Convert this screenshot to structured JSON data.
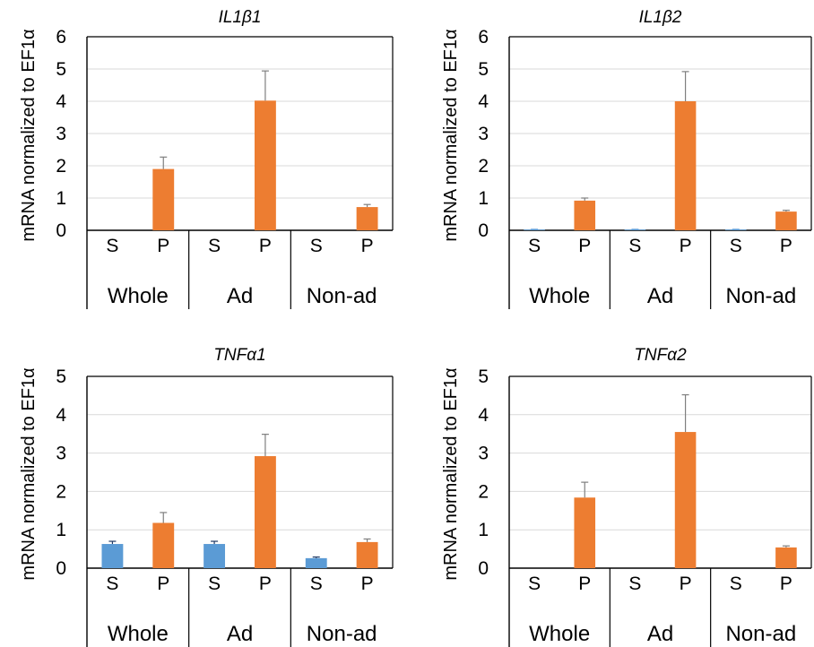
{
  "colors": {
    "S": "#5b9bd5",
    "P": "#ed7d31",
    "grid": "#d9d9d9",
    "axis": "#000000",
    "error": "#7f7f7f"
  },
  "chart_data": [
    {
      "type": "bar",
      "title": "IL1β1",
      "ylabel": "mRNA normalized to EF1α",
      "ylim": [
        0,
        6
      ],
      "yticks": [
        "0",
        "1",
        "2",
        "3",
        "4",
        "5",
        "6"
      ],
      "grid": true,
      "categories": [
        "S",
        "P",
        "S",
        "P",
        "S",
        "P"
      ],
      "groups": [
        "Whole",
        "Ad",
        "Non-ad"
      ],
      "values": [
        0,
        1.9,
        0,
        4.02,
        0,
        0.72
      ],
      "errors": [
        0,
        0.37,
        0,
        0.92,
        0,
        0.08
      ]
    },
    {
      "type": "bar",
      "title": "IL1β2",
      "ylabel": "mRNA normalized to EF1α",
      "ylim": [
        0,
        6
      ],
      "yticks": [
        "0",
        "1",
        "2",
        "3",
        "4",
        "5",
        "6"
      ],
      "grid": true,
      "categories": [
        "S",
        "P",
        "S",
        "P",
        "S",
        "P"
      ],
      "groups": [
        "Whole",
        "Ad",
        "Non-ad"
      ],
      "values": [
        0.01,
        0.92,
        0.01,
        4.0,
        0.01,
        0.58
      ],
      "errors": [
        0.02,
        0.08,
        0.02,
        0.92,
        0.02,
        0.04
      ]
    },
    {
      "type": "bar",
      "title": "TNFα1",
      "ylabel": "mRNA  normalized to EF1α",
      "ylim": [
        0,
        5
      ],
      "yticks": [
        "0",
        "1",
        "2",
        "3",
        "4",
        "5"
      ],
      "grid": true,
      "categories": [
        "S",
        "P",
        "S",
        "P",
        "S",
        "P"
      ],
      "groups": [
        "Whole",
        "Ad",
        "Non-ad"
      ],
      "values": [
        0.63,
        1.18,
        0.63,
        2.92,
        0.26,
        0.68
      ],
      "errors": [
        0.07,
        0.27,
        0.07,
        0.57,
        0.03,
        0.08
      ]
    },
    {
      "type": "bar",
      "title": "TNFα2",
      "ylabel": "mRNA normalized to EF1α",
      "ylim": [
        0,
        5
      ],
      "yticks": [
        "0",
        "1",
        "2",
        "3",
        "4",
        "5"
      ],
      "grid": true,
      "categories": [
        "S",
        "P",
        "S",
        "P",
        "S",
        "P"
      ],
      "groups": [
        "Whole",
        "Ad",
        "Non-ad"
      ],
      "values": [
        0,
        1.84,
        0,
        3.55,
        0,
        0.54
      ],
      "errors": [
        0,
        0.4,
        0,
        0.97,
        0,
        0.04
      ]
    }
  ]
}
